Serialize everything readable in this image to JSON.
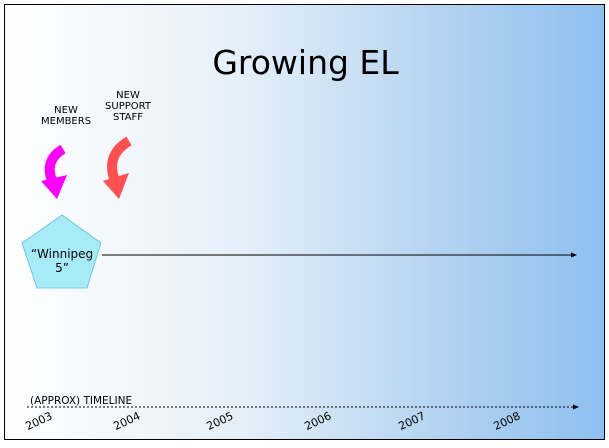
{
  "slide": {
    "title": "Growing EL",
    "labels": {
      "new_members": "NEW\nMEMBERS",
      "new_support_staff": "NEW\nSUPPORT\nSTAFF"
    },
    "pentagon_text": "“Winnipeg\n5”",
    "timeline_label": "(APPROX) TIMELINE",
    "years": [
      "2003",
      "2004",
      "2005",
      "2006",
      "2007",
      "2008"
    ],
    "colors": {
      "members_arrow": "#ff00ff",
      "support_arrow": "#ff4f4f",
      "pentagon_fill": "#a7eaf8",
      "background_right": "#8ec0ef"
    },
    "icons": {
      "members_arrow": "curved-down-arrow",
      "support_arrow": "curved-down-arrow"
    }
  }
}
